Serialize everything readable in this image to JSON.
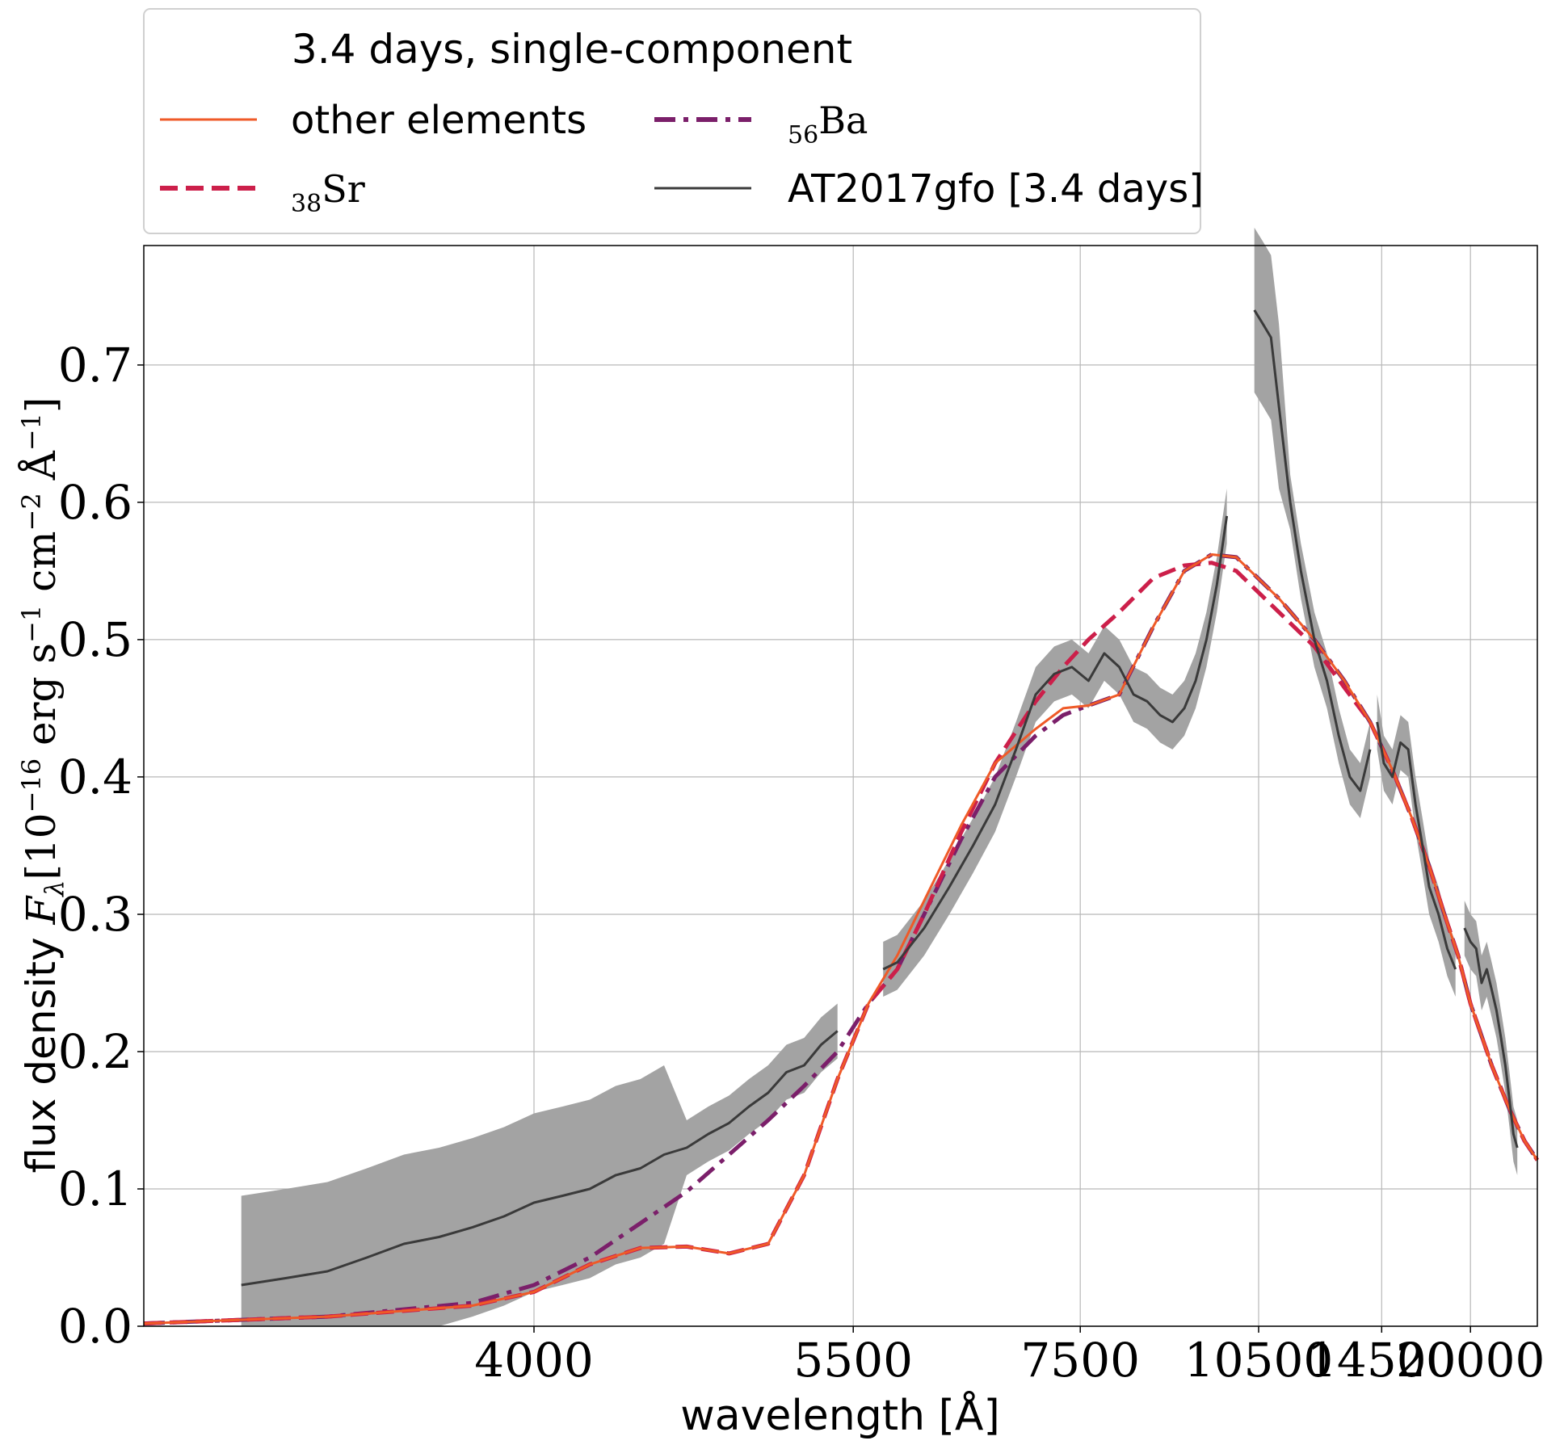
{
  "chart_data": {
    "type": "line",
    "title": "3.4 days, single-component",
    "xlabel": "wavelength [Å]",
    "ylabel_prefix": "flux density ",
    "ylabel_symbol": "F",
    "ylabel_subscript": "λ",
    "ylabel_unit": "[10",
    "ylabel_exp1": "−16",
    "ylabel_unit2": " erg s",
    "ylabel_exp2": "−1",
    "ylabel_unit3": " cm",
    "ylabel_exp3": "−2",
    "ylabel_unit4": " Å",
    "ylabel_exp4": "−1",
    "ylabel_unit5": "]",
    "x_scale": "reciprocal (1/λ)",
    "xlim": [
      3000,
      28000
    ],
    "ylim": [
      0.0,
      0.787
    ],
    "grid": true,
    "legend_position": "above-left",
    "xticks": [
      "4000",
      "5500",
      "7500",
      "10500",
      "14500",
      "20000"
    ],
    "xtick_values": [
      4000,
      5500,
      7500,
      10500,
      14500,
      20000
    ],
    "yticks": [
      "0.0",
      "0.1",
      "0.2",
      "0.3",
      "0.4",
      "0.5",
      "0.6",
      "0.7"
    ],
    "ytick_values": [
      0.0,
      0.1,
      0.2,
      0.3,
      0.4,
      0.5,
      0.6,
      0.7
    ],
    "legend": [
      {
        "label": "other elements",
        "sub": "",
        "style": "solid"
      },
      {
        "label": "Sr",
        "sub": "38",
        "style": "dashed"
      },
      {
        "label": "Ba",
        "sub": "56",
        "style": "dashdot"
      },
      {
        "label": "AT2017gfo [3.4 days]",
        "sub": "",
        "style": "solid-dark"
      }
    ],
    "series": [
      {
        "name": "other elements",
        "color": "#ef5a28",
        "style": "solid",
        "x": [
          3000,
          3400,
          3800,
          4000,
          4200,
          4400,
          4600,
          4800,
          5000,
          5200,
          5400,
          5600,
          5800,
          6000,
          6300,
          6600,
          7000,
          7300,
          7600,
          8000,
          8500,
          9000,
          9500,
          10000,
          11000,
          12000,
          13000,
          14000,
          15000,
          16000,
          17000,
          18000,
          19000,
          20000,
          22000,
          24000,
          26000,
          28000
        ],
        "y": [
          0.002,
          0.007,
          0.015,
          0.025,
          0.045,
          0.057,
          0.058,
          0.053,
          0.06,
          0.11,
          0.18,
          0.235,
          0.27,
          0.31,
          0.365,
          0.41,
          0.435,
          0.45,
          0.452,
          0.46,
          0.51,
          0.55,
          0.562,
          0.56,
          0.53,
          0.5,
          0.47,
          0.44,
          0.405,
          0.37,
          0.335,
          0.3,
          0.27,
          0.235,
          0.19,
          0.158,
          0.135,
          0.121
        ]
      },
      {
        "name": "Sr",
        "color": "#cc1f4a",
        "style": "dashed",
        "x": [
          3000,
          3400,
          3800,
          4000,
          4200,
          4400,
          4600,
          4800,
          5000,
          5200,
          5400,
          5600,
          5800,
          6000,
          6300,
          6600,
          7000,
          7300,
          7600,
          8000,
          8500,
          9000,
          9500,
          10000,
          11000,
          12000,
          13000,
          14000,
          15000,
          16000,
          17000,
          18000,
          19000,
          20000,
          22000,
          24000,
          26000,
          28000
        ],
        "y": [
          0.002,
          0.007,
          0.015,
          0.025,
          0.045,
          0.057,
          0.058,
          0.053,
          0.06,
          0.11,
          0.18,
          0.235,
          0.26,
          0.3,
          0.36,
          0.41,
          0.455,
          0.48,
          0.5,
          0.52,
          0.545,
          0.554,
          0.556,
          0.55,
          0.52,
          0.495,
          0.465,
          0.44,
          0.405,
          0.37,
          0.335,
          0.3,
          0.27,
          0.235,
          0.19,
          0.158,
          0.135,
          0.121
        ]
      },
      {
        "name": "Ba",
        "color": "#7b1f6a",
        "style": "dashdot",
        "x": [
          3000,
          3400,
          3800,
          4000,
          4200,
          4400,
          4600,
          4800,
          5000,
          5200,
          5400,
          5600,
          5800,
          6000,
          6300,
          6600,
          7000,
          7300,
          7600,
          8000,
          8500,
          9000,
          9500,
          10000,
          11000,
          12000,
          13000,
          14000,
          15000,
          16000,
          17000,
          18000,
          19000,
          20000,
          22000,
          24000,
          26000,
          28000
        ],
        "y": [
          0.002,
          0.007,
          0.017,
          0.03,
          0.05,
          0.075,
          0.098,
          0.125,
          0.15,
          0.175,
          0.2,
          0.235,
          0.26,
          0.3,
          0.355,
          0.4,
          0.43,
          0.445,
          0.452,
          0.46,
          0.51,
          0.55,
          0.562,
          0.56,
          0.53,
          0.5,
          0.47,
          0.44,
          0.405,
          0.37,
          0.335,
          0.3,
          0.27,
          0.235,
          0.19,
          0.158,
          0.135,
          0.121
        ]
      },
      {
        "name": "AT2017gfo [3.4 days]",
        "color": "#3a3a3a",
        "style": "solid-dark",
        "segments": [
          {
            "x": [
              3200,
              3300,
              3400,
              3500,
              3600,
              3700,
              3800,
              3900,
              4000,
              4100,
              4200,
              4300,
              4400,
              4500,
              4600,
              4700,
              4800,
              4900,
              5000,
              5100,
              5200,
              5300,
              5400
            ],
            "y": [
              0.03,
              0.035,
              0.04,
              0.05,
              0.06,
              0.065,
              0.072,
              0.08,
              0.09,
              0.095,
              0.1,
              0.11,
              0.115,
              0.125,
              0.13,
              0.14,
              0.148,
              0.16,
              0.17,
              0.185,
              0.19,
              0.205,
              0.215
            ]
          },
          {
            "x": [
              5700,
              5800,
              6000,
              6200,
              6400,
              6600,
              6800,
              7000,
              7200,
              7400,
              7600,
              7800,
              8000,
              8200,
              8400,
              8600,
              8800,
              9000,
              9200,
              9400,
              9600,
              9800
            ],
            "y": [
              0.26,
              0.265,
              0.29,
              0.32,
              0.35,
              0.38,
              0.42,
              0.46,
              0.475,
              0.48,
              0.47,
              0.49,
              0.48,
              0.46,
              0.455,
              0.445,
              0.44,
              0.45,
              0.47,
              0.5,
              0.54,
              0.59
            ]
          },
          {
            "x": [
              10400,
              10600,
              10800,
              11000,
              11300,
              11600,
              12000,
              12400,
              12800,
              13200,
              13600,
              14000
            ],
            "y": [
              0.74,
              0.73,
              0.72,
              0.67,
              0.6,
              0.55,
              0.5,
              0.47,
              0.43,
              0.4,
              0.39,
              0.42
            ]
          },
          {
            "x": [
              14300,
              14600,
              15000,
              15400,
              15800,
              16200,
              16600,
              17000,
              17600,
              18200,
              18800
            ],
            "y": [
              0.44,
              0.41,
              0.4,
              0.425,
              0.42,
              0.38,
              0.35,
              0.32,
              0.3,
              0.275,
              0.26
            ]
          },
          {
            "x": [
              19500,
              20000,
              20500,
              21000,
              21500,
              22000,
              22500,
              23000,
              23500,
              24000,
              24500,
              25000
            ],
            "y": [
              0.29,
              0.28,
              0.275,
              0.25,
              0.26,
              0.245,
              0.23,
              0.21,
              0.19,
              0.165,
              0.14,
              0.13
            ]
          }
        ]
      }
    ]
  }
}
